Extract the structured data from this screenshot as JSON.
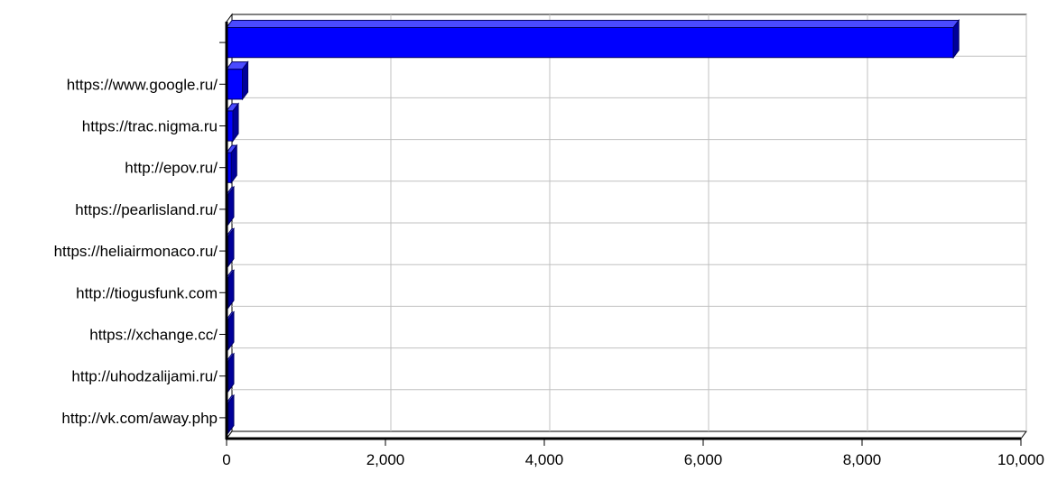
{
  "chart_data": {
    "type": "bar",
    "orientation": "horizontal",
    "style": "3d",
    "title": "",
    "xlabel": "",
    "ylabel": "",
    "categories": [
      "",
      "https://www.google.ru/",
      "https://trac.nigma.ru",
      "http://epov.ru/",
      "https://pearlisland.ru/",
      "https://heliairmonaco.ru/",
      "http://tiogusfunk.com",
      "https://xchange.cc/",
      "http://uhodzalijami.ru/",
      "http://vk.com/away.php"
    ],
    "values": [
      9150,
      200,
      80,
      60,
      20,
      20,
      20,
      20,
      20,
      20
    ],
    "xlim": [
      0,
      10000
    ],
    "x_ticks": [
      0,
      2000,
      4000,
      6000,
      8000,
      10000
    ],
    "x_tick_labels": [
      "0",
      "2,000",
      "4,000",
      "6,000",
      "8,000",
      "10,000"
    ],
    "grid": true,
    "legend": "none",
    "colors": {
      "bar_front": "#0000ff",
      "bar_top": "#4a4aff",
      "bar_side": "#00009a",
      "grid": "#c0c0c0"
    }
  }
}
